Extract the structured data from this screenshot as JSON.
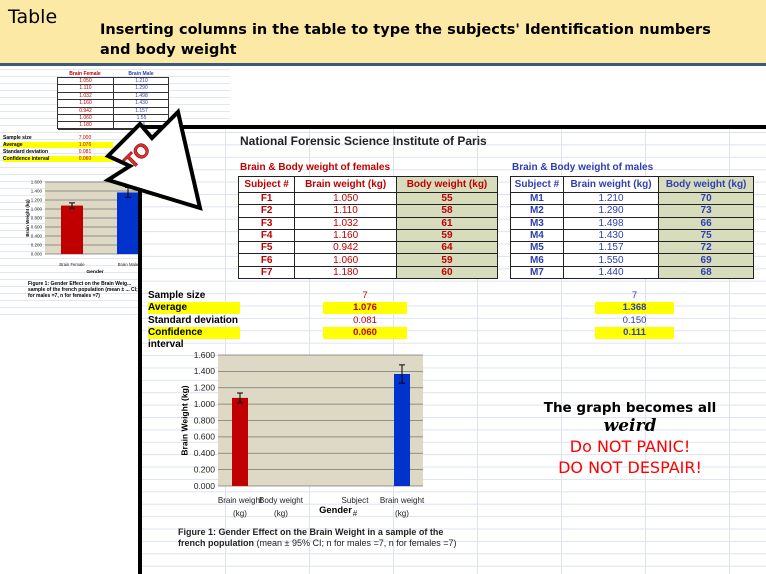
{
  "header": {
    "title": "Table",
    "subtitle": "Inserting columns in the table to type the subjects' Identification numbers and body weight"
  },
  "arrow_label": "TO",
  "small_sheet": {
    "headers": [
      "Brain Female",
      "Brain Male"
    ],
    "female": [
      "1.050",
      "1.110",
      "1.032",
      "1.160",
      "0.942",
      "1.060",
      "1.180"
    ],
    "male": [
      "1.210",
      "1.290",
      "1.498",
      "1.430",
      "1.157",
      "1.55",
      "1.4"
    ],
    "stats": [
      {
        "label": "Sample size",
        "f": "7.000"
      },
      {
        "label": "Average",
        "f": "1.076"
      },
      {
        "label": "Standard deviation",
        "f": "0.081"
      },
      {
        "label": "Confidence interval",
        "f": "0.060"
      }
    ],
    "caption": "Figure 1: Gender Effect on the Brain Weig... sample of the french population (mean ± ... CI; n for males =7, n for females =7)"
  },
  "sheet": {
    "title": "National Forensic Science Institute of Paris",
    "female_title": "Brain & Body weight of females",
    "male_title": "Brain & Body weight of males",
    "columns": [
      "Subject #",
      "Brain weight (kg)",
      "Body weight (kg)"
    ],
    "female_rows": [
      [
        "F1",
        "1.050",
        "55"
      ],
      [
        "F2",
        "1.110",
        "58"
      ],
      [
        "F3",
        "1.032",
        "61"
      ],
      [
        "F4",
        "1.160",
        "59"
      ],
      [
        "F5",
        "0.942",
        "64"
      ],
      [
        "F6",
        "1.060",
        "59"
      ],
      [
        "F7",
        "1.180",
        "60"
      ]
    ],
    "male_rows": [
      [
        "M1",
        "1.210",
        "70"
      ],
      [
        "M2",
        "1.290",
        "73"
      ],
      [
        "M3",
        "1.498",
        "66"
      ],
      [
        "M4",
        "1.430",
        "75"
      ],
      [
        "M5",
        "1.157",
        "72"
      ],
      [
        "M6",
        "1.550",
        "69"
      ],
      [
        "M7",
        "1.440",
        "68"
      ]
    ],
    "stats": [
      {
        "label": "Sample size",
        "f": "7",
        "m": "7",
        "highlight": false
      },
      {
        "label": "Average",
        "f": "1.076",
        "m": "1.368",
        "highlight": true
      },
      {
        "label": "Standard deviation",
        "f": "0.081",
        "m": "0.150",
        "highlight": false
      },
      {
        "label": "Confidence interval",
        "f": "0.060",
        "m": "0.111",
        "highlight": true
      }
    ],
    "caption_bold": "Figure 1: Gender Effect on the Brain Weight in a sample of the french population",
    "caption_rest": " (mean ± 95% CI; n for males =7, n for females =7)"
  },
  "note": {
    "line1": "The graph becomes all",
    "line2": "weird",
    "line3": "Do NOT PANIC!",
    "line4": "DO NOT DESPAIR!"
  },
  "colors": {
    "female": "#c00000",
    "male": "#0033cc",
    "plot_bg": "#ddd9c4",
    "highlight": "#ffff00"
  },
  "chart_data": [
    {
      "type": "bar",
      "title": "",
      "xlabel": "Gender",
      "ylabel": "Brain Weight (kg)",
      "ylim": [
        0,
        1.6
      ],
      "yticks": [
        "0.000",
        "0.200",
        "0.400",
        "0.600",
        "0.800",
        "1.000",
        "1.200",
        "1.400",
        "1.600"
      ],
      "categories": [
        "Brain weight (kg)",
        "Body weight (kg)",
        "Subject #",
        "Brain weight (kg)"
      ],
      "values": [
        1.076,
        null,
        null,
        1.368
      ],
      "errors": [
        0.06,
        null,
        null,
        0.111
      ],
      "grid": true
    },
    {
      "type": "bar",
      "title": "",
      "xlabel": "Gender",
      "ylabel": "Brain Weight (kg)",
      "ylim": [
        0,
        1.6
      ],
      "yticks": [
        "0.000",
        "0.200",
        "0.400",
        "0.600",
        "0.800",
        "1.000",
        "1.200",
        "1.400",
        "1.600"
      ],
      "categories": [
        "Brain Female",
        "Brain Male"
      ],
      "values": [
        1.076,
        1.368
      ],
      "errors": [
        0.06,
        0.111
      ],
      "grid": true
    }
  ]
}
